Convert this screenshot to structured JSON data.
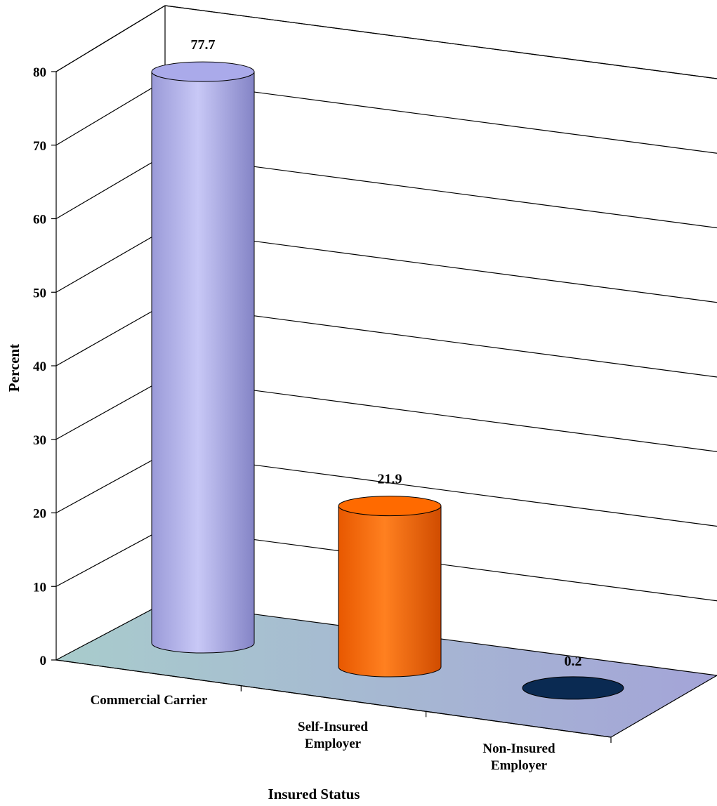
{
  "chart_data": {
    "type": "bar",
    "style": "3d-cylinder",
    "categories": [
      "Commercial Carrier",
      "Self-Insured Employer",
      "Non-Insured Employer"
    ],
    "values": [
      77.7,
      21.9,
      0.2
    ],
    "data_labels": [
      "77.7",
      "21.9",
      "0.2"
    ],
    "colors": [
      "#aaaaea",
      "#ff6a00",
      "#0a2a52"
    ],
    "title": "",
    "xlabel": "Insured Status",
    "ylabel": "Percent",
    "ylim": [
      0,
      80
    ],
    "yticks": [
      "0",
      "10",
      "20",
      "30",
      "40",
      "50",
      "60",
      "70",
      "80"
    ],
    "grid": true,
    "legend": "none",
    "floor_color": "#a4c4c4"
  }
}
